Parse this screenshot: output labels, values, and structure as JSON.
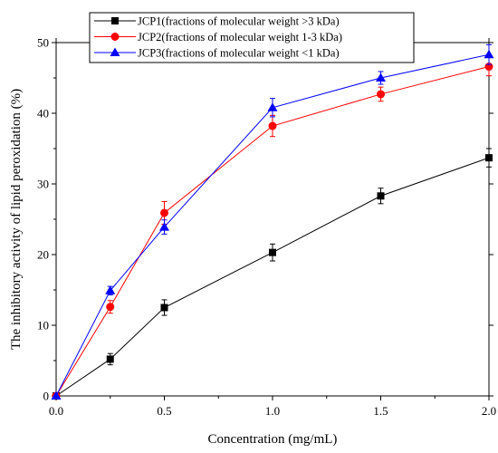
{
  "chart_data": {
    "type": "line",
    "title": "",
    "xlabel": "Concentration (mg/mL)",
    "ylabel": "The inhibitory activity of lipid peroxidation (%)",
    "xlim": [
      0.0,
      2.0
    ],
    "ylim": [
      0,
      50
    ],
    "x_ticks": [
      "0.0",
      "0.5",
      "1.0",
      "1.5",
      "2.0"
    ],
    "y_ticks": [
      "0",
      "10",
      "20",
      "30",
      "40",
      "50"
    ],
    "grid": false,
    "legend_position": "top",
    "x": [
      0,
      0.25,
      0.5,
      1.0,
      1.5,
      2.0
    ],
    "series": [
      {
        "name": "JCP1(fractions of molecular weight >3 kDa)",
        "color": "#000000",
        "marker": "square",
        "values": [
          0,
          5.2,
          12.5,
          20.3,
          28.3,
          33.7
        ],
        "errors": [
          0,
          0.8,
          1.1,
          1.2,
          1.1,
          1.3
        ]
      },
      {
        "name": "JCP2(fractions of molecular weight 1-3 kDa)",
        "color": "#ff0000",
        "marker": "circle",
        "values": [
          0,
          12.6,
          25.9,
          38.2,
          42.7,
          46.6
        ],
        "errors": [
          0,
          0.9,
          1.6,
          1.5,
          1.0,
          1.3
        ]
      },
      {
        "name": "JCP3(fractions of molecular weight <1 kDa)",
        "color": "#0000ff",
        "marker": "triangle",
        "values": [
          0,
          14.9,
          23.9,
          40.8,
          45.0,
          48.3
        ],
        "errors": [
          0,
          0.6,
          1.0,
          1.3,
          0.9,
          1.4
        ]
      }
    ]
  }
}
